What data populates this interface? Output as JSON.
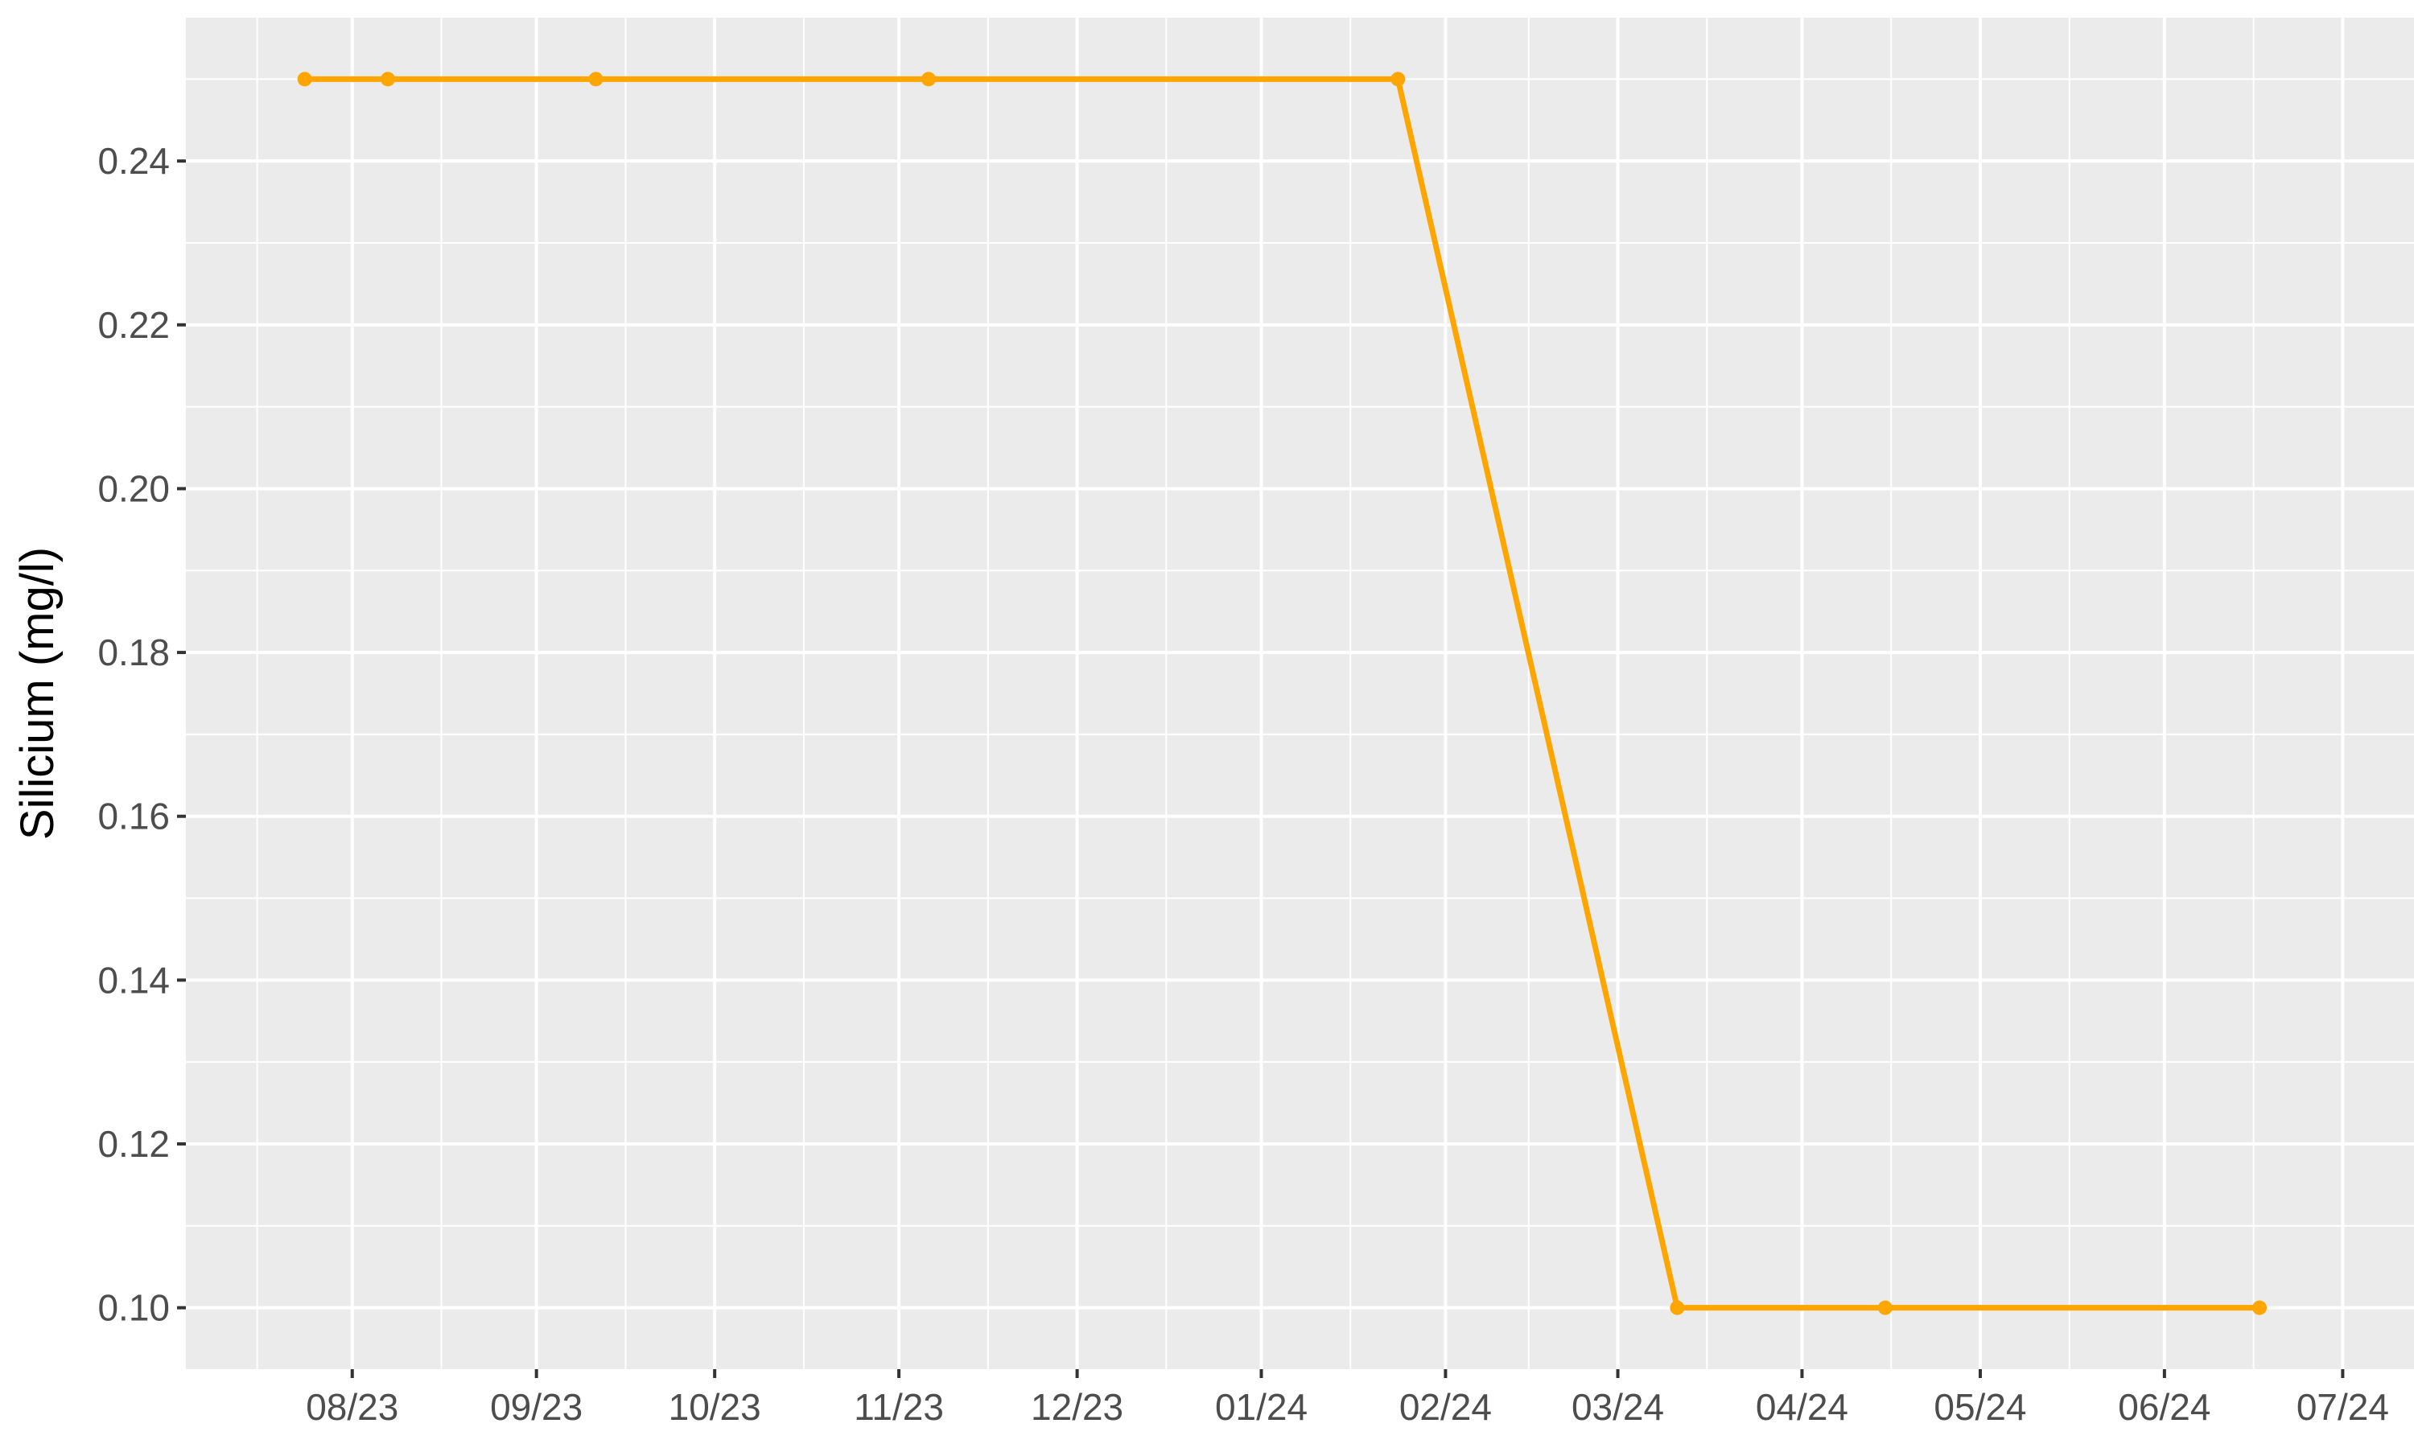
{
  "chart_data": {
    "type": "line",
    "title": "",
    "xlabel": "",
    "ylabel": "Silicium (mg/l)",
    "x_axis": {
      "kind": "date",
      "range": [
        "2023-07-04",
        "2024-07-13"
      ],
      "tick_dates": [
        "2023-08-01",
        "2023-09-01",
        "2023-10-01",
        "2023-11-01",
        "2023-12-01",
        "2024-01-01",
        "2024-02-01",
        "2024-03-01",
        "2024-04-01",
        "2024-05-01",
        "2024-06-01",
        "2024-07-01"
      ],
      "tick_labels": [
        "08/23",
        "09/23",
        "10/23",
        "11/23",
        "12/23",
        "01/24",
        "02/24",
        "03/24",
        "04/24",
        "05/24",
        "06/24",
        "07/24"
      ],
      "minor_break_dates": [
        "2023-07-16",
        "2023-08-16",
        "2023-09-16",
        "2023-10-16",
        "2023-11-16",
        "2023-12-16",
        "2024-01-16",
        "2024-02-15",
        "2024-03-16",
        "2024-04-16",
        "2024-05-16",
        "2024-06-16"
      ]
    },
    "y_axis": {
      "range": [
        0.0925,
        0.2575
      ],
      "ticks": [
        0.1,
        0.12,
        0.14,
        0.16,
        0.18,
        0.2,
        0.22,
        0.24
      ],
      "tick_labels": [
        "0.10",
        "0.12",
        "0.14",
        "0.16",
        "0.18",
        "0.20",
        "0.22",
        "0.24"
      ],
      "minor_breaks": [
        0.11,
        0.13,
        0.15,
        0.17,
        0.19,
        0.21,
        0.23,
        0.25
      ]
    },
    "grid": true,
    "legend": "none",
    "series": [
      {
        "color": "#FFA500",
        "x": [
          "2023-07-24",
          "2023-08-07",
          "2023-09-11",
          "2023-11-06",
          "2024-01-24",
          "2024-03-11",
          "2024-04-15",
          "2024-06-17"
        ],
        "y": [
          0.25,
          0.25,
          0.25,
          0.25,
          0.25,
          0.1,
          0.1,
          0.1
        ]
      }
    ],
    "colors": {
      "panel_background": "#EBEBEB",
      "grid": "#FFFFFF",
      "tick_text": "#4D4D4D",
      "tick_mark": "#333333"
    }
  }
}
